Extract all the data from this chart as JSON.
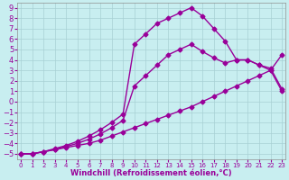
{
  "xlabel": "Windchill (Refroidissement éolien,°C)",
  "bg_color": "#c8eef0",
  "grid_color": "#a8d0d4",
  "line_color": "#990099",
  "xlim": [
    -0.3,
    23.3
  ],
  "ylim": [
    -5.5,
    9.5
  ],
  "xticks": [
    0,
    1,
    2,
    3,
    4,
    5,
    6,
    7,
    8,
    9,
    10,
    11,
    12,
    13,
    14,
    15,
    16,
    17,
    18,
    19,
    20,
    21,
    22,
    23
  ],
  "yticks": [
    9,
    8,
    7,
    6,
    5,
    4,
    3,
    2,
    1,
    0,
    -1,
    -2,
    -3,
    -4,
    -5
  ],
  "line1_x": [
    0,
    1,
    2,
    3,
    4,
    5,
    6,
    7,
    8,
    9,
    10,
    11,
    12,
    13,
    14,
    15,
    16,
    17,
    18,
    19,
    20,
    21,
    22,
    23
  ],
  "line1_y": [
    -5,
    -5,
    -4.8,
    -4.6,
    -4.4,
    -4.2,
    -4.0,
    -3.7,
    -3.3,
    -2.9,
    -2.5,
    -2.1,
    -1.7,
    -1.3,
    -0.9,
    -0.5,
    0.0,
    0.5,
    1.0,
    1.5,
    2.0,
    2.5,
    3.0,
    4.5
  ],
  "line2_x": [
    0,
    1,
    2,
    3,
    4,
    5,
    6,
    7,
    8,
    9,
    10,
    11,
    12,
    13,
    14,
    15,
    16,
    17,
    18,
    19,
    20,
    21,
    22,
    23
  ],
  "line2_y": [
    -5,
    -5,
    -4.8,
    -4.6,
    -4.3,
    -4.0,
    -3.6,
    -3.1,
    -2.5,
    -1.8,
    1.5,
    2.5,
    3.5,
    4.5,
    5.0,
    5.5,
    4.8,
    4.2,
    3.7,
    4.0,
    4.0,
    3.5,
    3.2,
    1.2
  ],
  "line3_x": [
    0,
    1,
    2,
    3,
    4,
    5,
    6,
    7,
    8,
    9,
    10,
    11,
    12,
    13,
    14,
    15,
    16,
    17,
    18,
    19,
    20,
    21,
    22,
    23
  ],
  "line3_y": [
    -5,
    -5,
    -4.8,
    -4.5,
    -4.2,
    -3.8,
    -3.3,
    -2.7,
    -2.0,
    -1.2,
    5.5,
    6.5,
    7.5,
    8.0,
    8.5,
    9.0,
    8.2,
    7.0,
    5.8,
    4.0,
    4.0,
    3.5,
    3.0,
    1.0
  ],
  "marker": "D",
  "markersize": 2.5,
  "linewidth": 1.0,
  "xlabel_fontsize": 6,
  "tick_fontsize_x": 5,
  "tick_fontsize_y": 6
}
